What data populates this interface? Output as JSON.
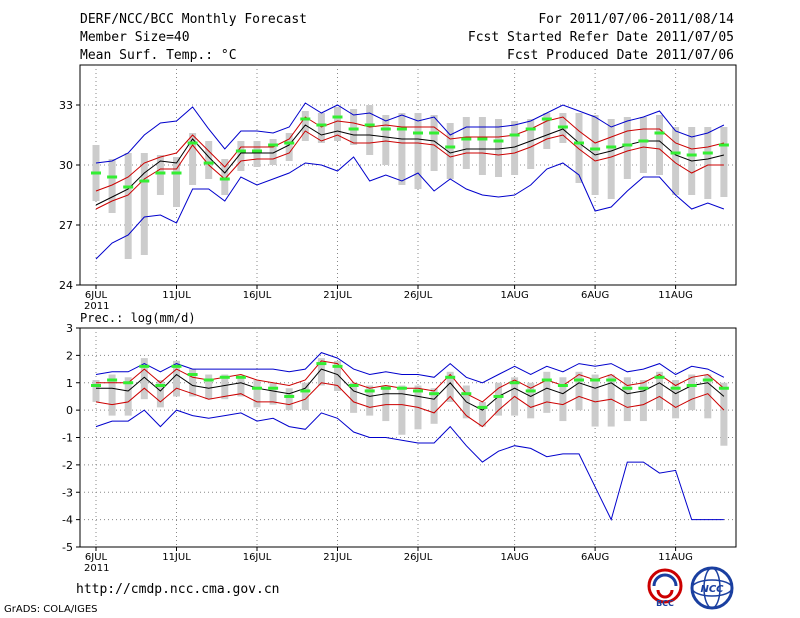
{
  "header": {
    "title": "DERF/NCC/BCC Monthly Forecast",
    "member_size": "Member Size=40",
    "variable": "Mean Surf. Temp.: °C",
    "for_range": "For 2011/07/06-2011/08/14",
    "fcst_started": "Fcst Started Refer Date 2011/07/05",
    "fcst_produced": "Fcst Produced Date 2011/07/06"
  },
  "footer": {
    "url": "http://cmdp.ncc.cma.gov.cn",
    "credit": "GrADS: COLA/IGES"
  },
  "logos": {
    "bcc_text": "BCC",
    "ncc_text": "NCC"
  },
  "colors": {
    "mean": "#000000",
    "red_line": "#cc0000",
    "blue_line": "#0000cc",
    "green_marker": "#33ee33",
    "box": "#cccccc",
    "grid": "#888888"
  },
  "chart_data": [
    {
      "type": "line",
      "title": "Mean Surf. Temp.: °C",
      "x_tick_labels": [
        "6JUL",
        "11JUL",
        "16JUL",
        "21JUL",
        "26JUL",
        "1AUG",
        "6AUG",
        "11AUG"
      ],
      "x_year_label": "2011",
      "ylim": [
        24,
        35
      ],
      "yticks": [
        24,
        27,
        30,
        33
      ],
      "series": [
        {
          "name": "ensemble mean",
          "values": [
            28.0,
            28.4,
            28.8,
            29.6,
            30.2,
            30.1,
            31.3,
            30.4,
            29.6,
            30.6,
            30.6,
            30.6,
            31.0,
            32.0,
            31.5,
            31.7,
            31.5,
            31.5,
            31.4,
            31.3,
            31.3,
            31.2,
            30.6,
            30.8,
            30.8,
            30.8,
            30.9,
            31.2,
            31.5,
            31.8,
            31.1,
            30.5,
            30.7,
            31.0,
            31.2,
            31.2,
            30.5,
            30.2,
            30.3,
            30.5
          ]
        },
        {
          "name": "upper red",
          "values": [
            28.7,
            29.0,
            29.4,
            30.1,
            30.4,
            30.6,
            31.5,
            30.7,
            29.9,
            30.9,
            30.9,
            30.9,
            31.3,
            32.4,
            31.9,
            32.2,
            32.1,
            31.9,
            32.0,
            31.9,
            31.9,
            31.9,
            31.3,
            31.4,
            31.4,
            31.4,
            31.5,
            31.8,
            32.2,
            32.4,
            31.7,
            31.1,
            31.4,
            31.7,
            31.8,
            31.8,
            31.1,
            30.8,
            30.9,
            31.1
          ]
        },
        {
          "name": "lower red",
          "values": [
            27.8,
            28.2,
            28.5,
            29.3,
            29.8,
            29.8,
            31.0,
            30.0,
            29.3,
            30.2,
            30.3,
            30.3,
            30.6,
            31.7,
            31.2,
            31.5,
            31.1,
            31.1,
            31.2,
            31.1,
            31.1,
            31.0,
            30.4,
            30.6,
            30.6,
            30.5,
            30.6,
            30.9,
            31.3,
            31.5,
            30.8,
            30.2,
            30.4,
            30.7,
            30.9,
            30.8,
            30.1,
            29.6,
            30.0,
            30.0
          ]
        },
        {
          "name": "upper blue",
          "values": [
            30.1,
            30.2,
            30.6,
            31.5,
            32.1,
            32.2,
            32.9,
            31.8,
            30.8,
            31.7,
            31.7,
            31.6,
            31.9,
            33.1,
            32.6,
            33.0,
            32.5,
            32.6,
            32.2,
            32.5,
            32.2,
            32.4,
            31.5,
            31.9,
            31.9,
            31.9,
            32.0,
            32.2,
            32.6,
            33.0,
            32.7,
            32.4,
            31.9,
            32.2,
            32.4,
            32.7,
            31.7,
            31.4,
            31.6,
            32.0
          ]
        },
        {
          "name": "lower blue",
          "values": [
            25.3,
            26.1,
            26.5,
            27.4,
            27.5,
            27.1,
            28.8,
            28.8,
            28.2,
            29.4,
            29.0,
            29.3,
            29.6,
            30.1,
            30.0,
            29.7,
            30.4,
            29.2,
            29.5,
            29.2,
            29.6,
            28.7,
            29.3,
            28.8,
            28.5,
            28.4,
            28.5,
            29.0,
            29.8,
            30.1,
            29.5,
            27.7,
            27.9,
            28.7,
            29.4,
            29.4,
            28.5,
            27.8,
            28.1,
            27.8
          ]
        },
        {
          "name": "green marker",
          "values": [
            29.6,
            29.4,
            28.9,
            29.2,
            29.6,
            29.6,
            31.1,
            30.1,
            29.3,
            30.7,
            30.7,
            31.0,
            31.1,
            32.3,
            32.0,
            32.4,
            31.8,
            32.0,
            31.8,
            31.8,
            31.6,
            31.6,
            30.9,
            31.3,
            31.3,
            31.2,
            31.5,
            31.8,
            32.3,
            31.9,
            31.1,
            30.8,
            30.9,
            31.0,
            31.2,
            31.6,
            30.6,
            30.5,
            30.6,
            31.0
          ]
        },
        {
          "name": "box top",
          "values": [
            31.0,
            30.3,
            30.6,
            30.6,
            30.5,
            30.4,
            31.6,
            31.2,
            30.3,
            31.2,
            31.2,
            31.3,
            31.6,
            32.7,
            32.6,
            32.9,
            32.8,
            33.0,
            32.5,
            32.6,
            32.6,
            32.5,
            32.1,
            32.4,
            32.4,
            32.3,
            32.2,
            32.3,
            32.6,
            32.6,
            32.6,
            32.5,
            32.3,
            32.4,
            32.4,
            32.5,
            31.9,
            31.9,
            31.9,
            31.9
          ]
        },
        {
          "name": "box bottom",
          "values": [
            28.2,
            27.6,
            25.3,
            25.5,
            28.5,
            27.9,
            29.0,
            29.3,
            28.5,
            29.7,
            29.9,
            30.0,
            30.2,
            31.2,
            31.1,
            31.2,
            31.0,
            30.5,
            30.0,
            29.0,
            28.8,
            29.7,
            29.3,
            29.8,
            29.5,
            29.4,
            29.5,
            29.8,
            30.8,
            31.1,
            29.1,
            28.5,
            28.3,
            29.3,
            29.6,
            29.5,
            28.5,
            28.5,
            28.3,
            28.4
          ]
        }
      ]
    },
    {
      "type": "line",
      "title": "Prec.: log(mm/d)",
      "x_tick_labels": [
        "6JUL",
        "11JUL",
        "16JUL",
        "21JUL",
        "26JUL",
        "1AUG",
        "6AUG",
        "11AUG"
      ],
      "x_year_label": "2011",
      "ylim": [
        -5,
        3
      ],
      "yticks": [
        -5,
        -4,
        -3,
        -2,
        -1,
        0,
        1,
        2,
        3
      ],
      "series": [
        {
          "name": "ensemble mean",
          "values": [
            0.8,
            0.8,
            0.7,
            1.2,
            0.7,
            1.3,
            0.9,
            0.8,
            0.9,
            1.0,
            0.8,
            0.7,
            0.6,
            0.8,
            1.5,
            1.3,
            0.7,
            0.5,
            0.6,
            0.6,
            0.5,
            0.4,
            1.0,
            0.3,
            0.0,
            0.5,
            0.8,
            0.5,
            0.8,
            0.6,
            1.0,
            0.8,
            1.0,
            0.6,
            0.7,
            1.0,
            0.6,
            0.9,
            1.0,
            0.5
          ]
        },
        {
          "name": "upper red",
          "values": [
            1.0,
            1.0,
            1.0,
            1.5,
            1.0,
            1.5,
            1.2,
            1.1,
            1.2,
            1.3,
            1.1,
            1.0,
            0.9,
            1.1,
            1.8,
            1.7,
            1.0,
            0.8,
            0.9,
            0.8,
            0.8,
            0.7,
            1.3,
            0.6,
            0.3,
            0.8,
            1.1,
            0.8,
            1.1,
            0.9,
            1.3,
            1.1,
            1.3,
            0.9,
            1.0,
            1.3,
            0.9,
            1.2,
            1.3,
            0.8
          ]
        },
        {
          "name": "lower red",
          "values": [
            0.3,
            0.2,
            0.3,
            0.8,
            0.3,
            0.8,
            0.6,
            0.4,
            0.5,
            0.6,
            0.3,
            0.3,
            0.2,
            0.4,
            1.0,
            0.9,
            0.3,
            0.1,
            0.2,
            0.2,
            0.1,
            -0.1,
            0.5,
            -0.2,
            -0.6,
            0.0,
            0.5,
            0.1,
            0.3,
            0.2,
            0.5,
            0.3,
            0.4,
            0.1,
            0.2,
            0.5,
            0.1,
            0.4,
            0.6,
            0.0
          ]
        },
        {
          "name": "upper blue",
          "values": [
            1.3,
            1.4,
            1.4,
            1.7,
            1.4,
            1.7,
            1.5,
            1.5,
            1.5,
            1.5,
            1.5,
            1.5,
            1.4,
            1.5,
            2.1,
            1.9,
            1.5,
            1.3,
            1.4,
            1.3,
            1.3,
            1.2,
            1.7,
            1.2,
            1.0,
            1.3,
            1.6,
            1.3,
            1.6,
            1.4,
            1.7,
            1.6,
            1.7,
            1.4,
            1.5,
            1.7,
            1.3,
            1.6,
            1.5,
            1.2
          ]
        },
        {
          "name": "lower blue",
          "values": [
            -0.6,
            -0.4,
            -0.4,
            0.0,
            -0.6,
            0.0,
            -0.2,
            -0.3,
            -0.2,
            -0.1,
            -0.4,
            -0.3,
            -0.6,
            -0.7,
            -0.1,
            -0.3,
            -0.8,
            -1.0,
            -1.0,
            -1.1,
            -1.2,
            -1.2,
            -0.6,
            -1.3,
            -1.9,
            -1.5,
            -1.3,
            -1.4,
            -1.7,
            -1.6,
            -1.6,
            -2.8,
            -4.0,
            -1.9,
            -1.9,
            -2.3,
            -2.2,
            -4.0,
            -4.0,
            -4.0
          ]
        },
        {
          "name": "green marker",
          "values": [
            0.9,
            1.1,
            1.0,
            1.6,
            0.9,
            1.6,
            1.3,
            1.1,
            1.2,
            1.2,
            0.8,
            0.8,
            0.5,
            0.7,
            1.7,
            1.6,
            0.9,
            0.7,
            0.8,
            0.8,
            0.7,
            0.6,
            1.2,
            0.6,
            0.1,
            0.5,
            1.0,
            0.7,
            1.1,
            0.9,
            1.1,
            1.1,
            1.1,
            0.8,
            0.8,
            1.2,
            0.8,
            0.9,
            1.1,
            0.8
          ]
        },
        {
          "name": "box top",
          "values": [
            1.1,
            1.3,
            1.2,
            1.9,
            1.1,
            1.8,
            1.5,
            1.3,
            1.3,
            1.2,
            1.1,
            1.0,
            0.8,
            1.0,
            1.9,
            1.8,
            1.0,
            0.9,
            0.9,
            0.9,
            0.9,
            0.8,
            1.4,
            0.9,
            0.3,
            1.0,
            1.2,
            1.0,
            1.4,
            1.2,
            1.4,
            1.3,
            1.3,
            1.2,
            1.1,
            1.4,
            1.1,
            1.3,
            1.3,
            1.0
          ]
        },
        {
          "name": "box bottom",
          "values": [
            0.3,
            -0.2,
            -0.2,
            0.4,
            0.1,
            0.5,
            0.5,
            0.4,
            0.4,
            0.5,
            0.1,
            0.2,
            0.0,
            0.0,
            0.9,
            0.7,
            -0.1,
            -0.2,
            -0.4,
            -0.9,
            -0.7,
            -0.5,
            0.3,
            -0.3,
            -0.6,
            -0.2,
            -0.2,
            -0.3,
            -0.1,
            -0.4,
            0.0,
            -0.6,
            -0.6,
            -0.4,
            -0.4,
            0.0,
            -0.3,
            0.0,
            -0.3,
            -1.3
          ]
        }
      ]
    }
  ]
}
